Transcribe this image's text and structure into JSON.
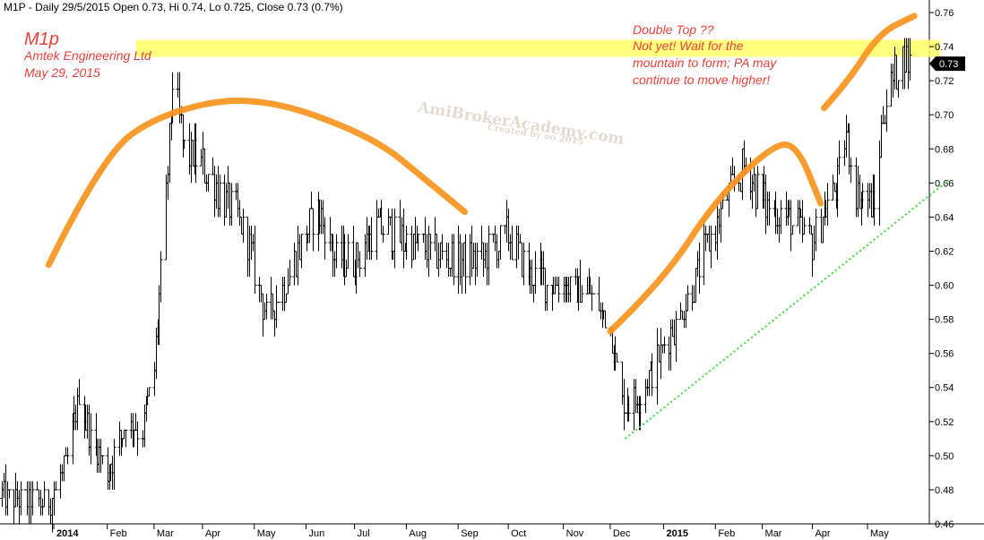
{
  "header": {
    "text": "M1P - Daily 29/5/2015 Open 0.73, Hi 0.74, Lo 0.725, Close 0.73 (0.7%)"
  },
  "annotations": {
    "ticker": "M1p",
    "company": "Amtek Engineering Ltd",
    "date": "May 29, 2015",
    "note_line1": "Double Top ??",
    "note_line2": "Not yet! Wait for the",
    "note_line3": "mountain to form; PA may",
    "note_line4": "continue to move higher!",
    "watermark_main": "AmiBrokerAcademy.com",
    "watermark_sub": "Created by oo 2015",
    "last_price_tag": "0.73"
  },
  "colors": {
    "price_bars": "#000000",
    "resistance_band": "#ffff66",
    "arcs": "#f7941d",
    "trendline": "#33dd33",
    "annotation_text": "#e8413a",
    "price_tag_bg": "#000000"
  },
  "chart_data": {
    "type": "ohlc",
    "title": "M1P - Daily 29/5/2015",
    "ylim": [
      0.46,
      0.76
    ],
    "y_ticks": [
      "0.46",
      "0.48",
      "0.50",
      "0.52",
      "0.54",
      "0.56",
      "0.58",
      "0.60",
      "0.62",
      "0.64",
      "0.66",
      "0.68",
      "0.70",
      "0.72",
      "0.74",
      "0.76"
    ],
    "x_ticks": [
      {
        "label": "2014",
        "bold": true
      },
      {
        "label": "Feb",
        "bold": false
      },
      {
        "label": "Mar",
        "bold": false
      },
      {
        "label": "Apr",
        "bold": false
      },
      {
        "label": "May",
        "bold": false
      },
      {
        "label": "Jun",
        "bold": false
      },
      {
        "label": "Jul",
        "bold": false
      },
      {
        "label": "Aug",
        "bold": false
      },
      {
        "label": "Sep",
        "bold": false
      },
      {
        "label": "Oct",
        "bold": false
      },
      {
        "label": "Nov",
        "bold": false
      },
      {
        "label": "Dec",
        "bold": false
      },
      {
        "label": "2015",
        "bold": true
      },
      {
        "label": "Feb",
        "bold": false
      },
      {
        "label": "Mar",
        "bold": false
      },
      {
        "label": "Apr",
        "bold": false
      },
      {
        "label": "May",
        "bold": false
      }
    ],
    "x_tick_dates": [
      "2014-01-02",
      "2014-02-03",
      "2014-03-03",
      "2014-04-01",
      "2014-05-02",
      "2014-06-02",
      "2014-07-01",
      "2014-08-01",
      "2014-09-01",
      "2014-10-01",
      "2014-11-03",
      "2014-12-01",
      "2015-01-02",
      "2015-02-02",
      "2015-03-02",
      "2015-04-01",
      "2015-05-04"
    ],
    "last_close": 0.73,
    "price_anchors": [
      {
        "date": "2013-12-02",
        "price": 0.475
      },
      {
        "date": "2013-12-30",
        "price": 0.472
      },
      {
        "date": "2014-01-10",
        "price": 0.495
      },
      {
        "date": "2014-01-17",
        "price": 0.535
      },
      {
        "date": "2014-01-24",
        "price": 0.51
      },
      {
        "date": "2014-02-03",
        "price": 0.49
      },
      {
        "date": "2014-02-14",
        "price": 0.52
      },
      {
        "date": "2014-02-24",
        "price": 0.515
      },
      {
        "date": "2014-03-03",
        "price": 0.55
      },
      {
        "date": "2014-03-10",
        "price": 0.65
      },
      {
        "date": "2014-03-14",
        "price": 0.72
      },
      {
        "date": "2014-03-21",
        "price": 0.68
      },
      {
        "date": "2014-04-01",
        "price": 0.67
      },
      {
        "date": "2014-04-11",
        "price": 0.655
      },
      {
        "date": "2014-04-22",
        "price": 0.64
      },
      {
        "date": "2014-04-30",
        "price": 0.62
      },
      {
        "date": "2014-05-09",
        "price": 0.58
      },
      {
        "date": "2014-05-20",
        "price": 0.6
      },
      {
        "date": "2014-06-02",
        "price": 0.63
      },
      {
        "date": "2014-06-09",
        "price": 0.645
      },
      {
        "date": "2014-06-20",
        "price": 0.615
      },
      {
        "date": "2014-07-01",
        "price": 0.615
      },
      {
        "date": "2014-07-15",
        "price": 0.635
      },
      {
        "date": "2014-08-01",
        "price": 0.625
      },
      {
        "date": "2014-08-15",
        "price": 0.62
      },
      {
        "date": "2014-09-01",
        "price": 0.615
      },
      {
        "date": "2014-09-15",
        "price": 0.615
      },
      {
        "date": "2014-10-01",
        "price": 0.63
      },
      {
        "date": "2014-10-15",
        "price": 0.605
      },
      {
        "date": "2014-11-03",
        "price": 0.6
      },
      {
        "date": "2014-11-20",
        "price": 0.595
      },
      {
        "date": "2014-12-01",
        "price": 0.575
      },
      {
        "date": "2014-12-08",
        "price": 0.53
      },
      {
        "date": "2014-12-19",
        "price": 0.535
      },
      {
        "date": "2015-01-02",
        "price": 0.565
      },
      {
        "date": "2015-01-16",
        "price": 0.59
      },
      {
        "date": "2015-02-02",
        "price": 0.635
      },
      {
        "date": "2015-02-13",
        "price": 0.66
      },
      {
        "date": "2015-02-20",
        "price": 0.67
      },
      {
        "date": "2015-03-02",
        "price": 0.65
      },
      {
        "date": "2015-03-16",
        "price": 0.64
      },
      {
        "date": "2015-04-01",
        "price": 0.625
      },
      {
        "date": "2015-04-08",
        "price": 0.645
      },
      {
        "date": "2015-04-15",
        "price": 0.655
      },
      {
        "date": "2015-04-21",
        "price": 0.69
      },
      {
        "date": "2015-04-27",
        "price": 0.655
      },
      {
        "date": "2015-05-08",
        "price": 0.645
      },
      {
        "date": "2015-05-13",
        "price": 0.7
      },
      {
        "date": "2015-05-20",
        "price": 0.725
      },
      {
        "date": "2015-05-26",
        "price": 0.735
      },
      {
        "date": "2015-05-29",
        "price": 0.73
      }
    ],
    "resistance_band": [
      0.734,
      0.744
    ],
    "trendline": [
      {
        "date": "2014-12-10",
        "price": 0.51
      },
      {
        "date": "2015-06-22",
        "price": 0.662
      }
    ],
    "arcs": [
      {
        "points": [
          [
            "2013-12-30",
            0.612
          ],
          [
            "2014-01-31",
            0.676
          ],
          [
            "2014-03-07",
            0.701
          ],
          [
            "2014-05-02",
            0.712
          ],
          [
            "2014-07-11",
            0.688
          ],
          [
            "2014-08-15",
            0.66
          ],
          [
            "2014-09-05",
            0.643
          ]
        ]
      },
      {
        "points": [
          [
            "2014-12-01",
            0.573
          ],
          [
            "2015-01-02",
            0.603
          ],
          [
            "2015-02-02",
            0.65
          ],
          [
            "2015-03-09",
            0.683
          ],
          [
            "2015-03-23",
            0.682
          ],
          [
            "2015-04-06",
            0.648
          ]
        ]
      },
      {
        "points": [
          [
            "2015-04-08",
            0.704
          ],
          [
            "2015-04-22",
            0.719
          ],
          [
            "2015-05-11",
            0.748
          ],
          [
            "2015-06-01",
            0.758
          ]
        ]
      }
    ]
  }
}
